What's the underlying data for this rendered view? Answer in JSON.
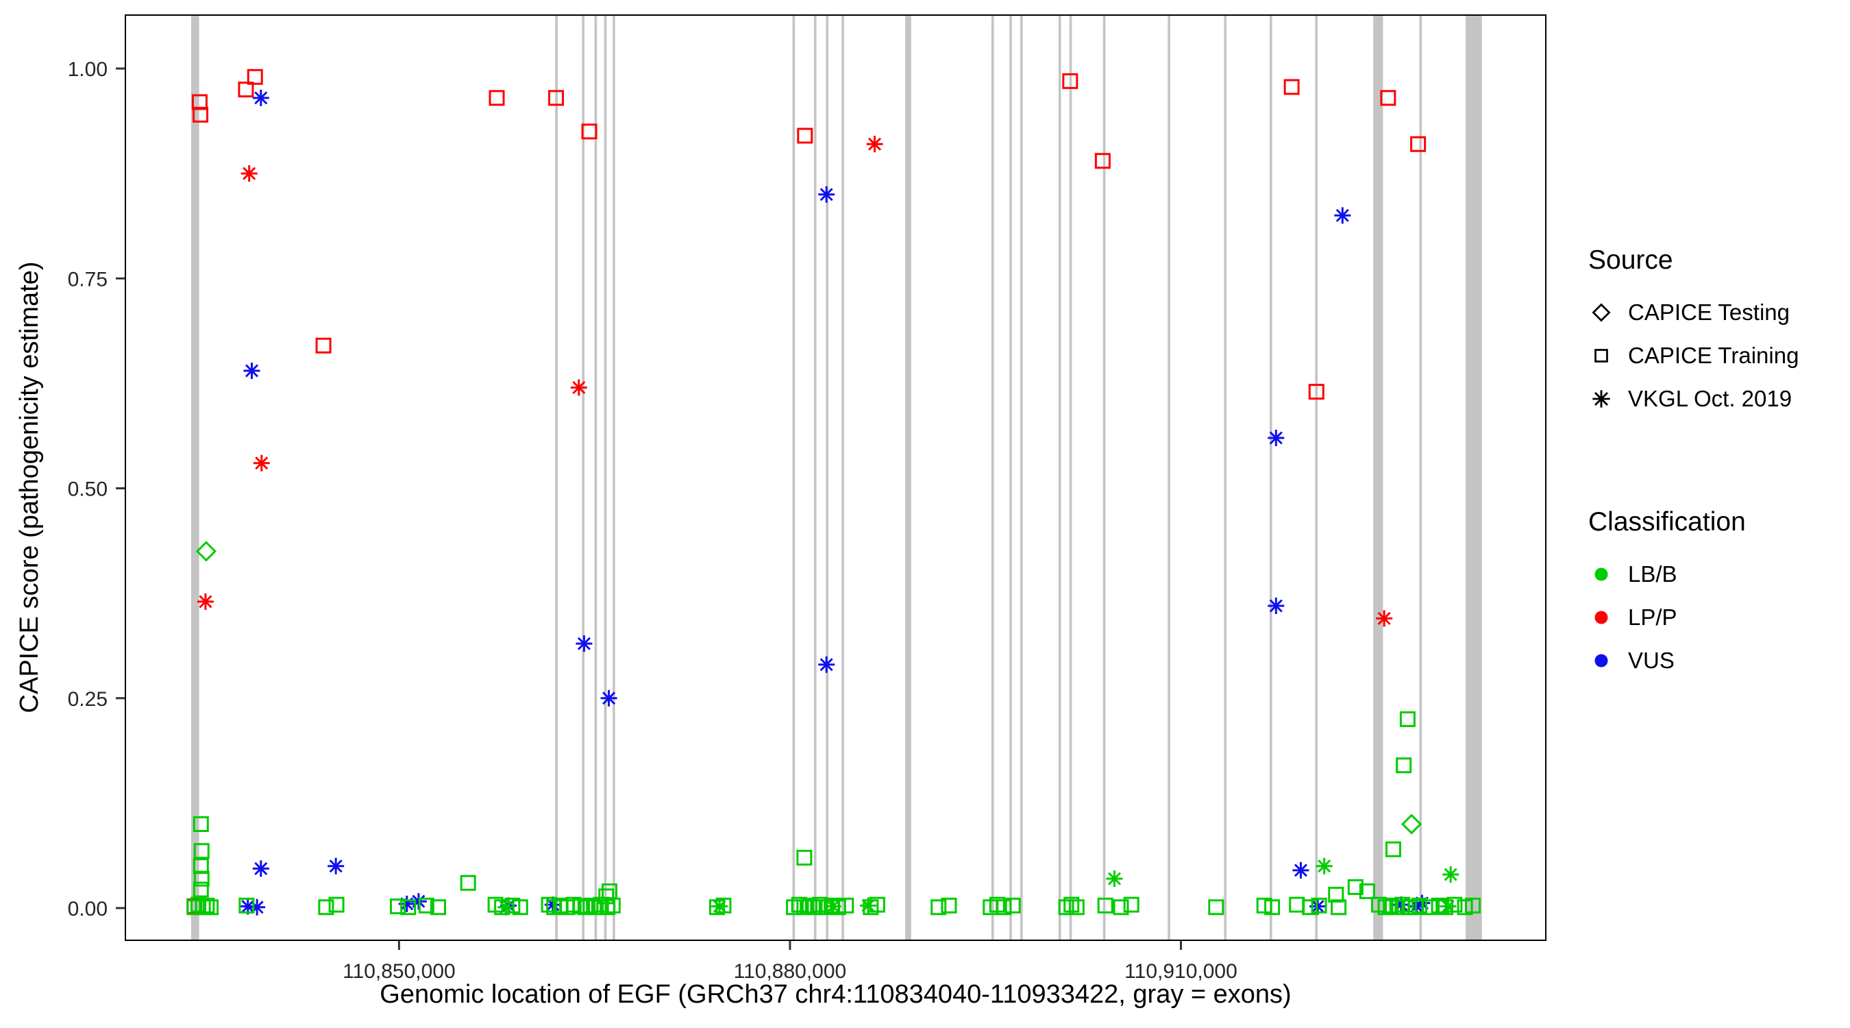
{
  "chart_data": {
    "type": "scatter",
    "title": "",
    "x_axis": {
      "label": "Genomic location of EGF (GRCh37 chr4:110834040-110933422, gray = exons)",
      "domain": [
        110829000,
        110938000
      ],
      "ticks": [
        {
          "value": 110850000,
          "label": "110,850,000"
        },
        {
          "value": 110880000,
          "label": "110,880,000"
        },
        {
          "value": 110910000,
          "label": "110,910,000"
        }
      ]
    },
    "y_axis": {
      "label": "CAPICE score (pathogenicity estimate)",
      "domain": [
        0,
        1
      ],
      "ticks": [
        {
          "value": 0,
          "label": "0.00"
        },
        {
          "value": 0.25,
          "label": "0.25"
        },
        {
          "value": 0.5,
          "label": "0.50"
        },
        {
          "value": 0.75,
          "label": "0.75"
        },
        {
          "value": 1,
          "label": "1.00"
        }
      ]
    },
    "legend_source": {
      "title": "Source",
      "items": [
        {
          "shape": "diamond",
          "label": "CAPICE Testing",
          "source_key": "testing"
        },
        {
          "shape": "square",
          "label": "CAPICE Training",
          "source_key": "training"
        },
        {
          "shape": "asterisk",
          "label": "VKGL Oct. 2019",
          "source_key": "vkgl"
        }
      ]
    },
    "legend_classification": {
      "title": "Classification",
      "items": [
        {
          "label": "LB/B"
        },
        {
          "label": "LP/P"
        },
        {
          "label": "VUS"
        }
      ]
    },
    "colors": {
      "LB/B": "#00CC00",
      "LP/P": "#FF0000",
      "VUS": "#1010EE",
      "exon": "#C4C4C4"
    },
    "exons": [
      [
        110834040,
        110834660
      ],
      [
        110861980,
        110862180
      ],
      [
        110864040,
        110864230
      ],
      [
        110865000,
        110865190
      ],
      [
        110865740,
        110865930
      ],
      [
        110866390,
        110866580
      ],
      [
        110880190,
        110880380
      ],
      [
        110881840,
        110882030
      ],
      [
        110882760,
        110882950
      ],
      [
        110883960,
        110884150
      ],
      [
        110888840,
        110889300
      ],
      [
        110895460,
        110895650
      ],
      [
        110896840,
        110897030
      ],
      [
        110897670,
        110897860
      ],
      [
        110900610,
        110900800
      ],
      [
        110901440,
        110901630
      ],
      [
        110904020,
        110904210
      ],
      [
        110908990,
        110909180
      ],
      [
        110913310,
        110913500
      ],
      [
        110916810,
        110917000
      ],
      [
        110920300,
        110920490
      ],
      [
        110924760,
        110925510
      ],
      [
        110928300,
        110928490
      ],
      [
        110931850,
        110933100
      ]
    ],
    "points_format": [
      "genomic_position",
      "capice_score",
      "classification",
      "source"
    ],
    "points": [
      [
        110834700,
        0.96,
        "LP/P",
        "training"
      ],
      [
        110834760,
        0.945,
        "LP/P",
        "training"
      ],
      [
        110838250,
        0.975,
        "LP/P",
        "training"
      ],
      [
        110838950,
        0.99,
        "LP/P",
        "training"
      ],
      [
        110844200,
        0.67,
        "LP/P",
        "training"
      ],
      [
        110857500,
        0.965,
        "LP/P",
        "training"
      ],
      [
        110862050,
        0.965,
        "LP/P",
        "training"
      ],
      [
        110864600,
        0.925,
        "LP/P",
        "training"
      ],
      [
        110881150,
        0.92,
        "LP/P",
        "training"
      ],
      [
        110901500,
        0.985,
        "LP/P",
        "training"
      ],
      [
        110904000,
        0.89,
        "LP/P",
        "training"
      ],
      [
        110918500,
        0.978,
        "LP/P",
        "training"
      ],
      [
        110920400,
        0.615,
        "LP/P",
        "training"
      ],
      [
        110925900,
        0.965,
        "LP/P",
        "training"
      ],
      [
        110928200,
        0.91,
        "LP/P",
        "training"
      ],
      [
        110834300,
        0.002,
        "LP/P",
        "training"
      ],
      [
        110838500,
        0.875,
        "LP/P",
        "vkgl"
      ],
      [
        110839450,
        0.53,
        "LP/P",
        "vkgl"
      ],
      [
        110835150,
        0.365,
        "LP/P",
        "vkgl"
      ],
      [
        110863800,
        0.62,
        "LP/P",
        "vkgl"
      ],
      [
        110886500,
        0.91,
        "LP/P",
        "vkgl"
      ],
      [
        110925600,
        0.345,
        "LP/P",
        "vkgl"
      ],
      [
        110835200,
        0.425,
        "LB/B",
        "testing"
      ],
      [
        110927700,
        0.1,
        "LB/B",
        "testing"
      ],
      [
        110839400,
        0.965,
        "VUS",
        "vkgl"
      ],
      [
        110838700,
        0.64,
        "VUS",
        "vkgl"
      ],
      [
        110882800,
        0.85,
        "VUS",
        "vkgl"
      ],
      [
        110922400,
        0.825,
        "VUS",
        "vkgl"
      ],
      [
        110864200,
        0.315,
        "VUS",
        "vkgl"
      ],
      [
        110866100,
        0.25,
        "VUS",
        "vkgl"
      ],
      [
        110882800,
        0.29,
        "VUS",
        "vkgl"
      ],
      [
        110917300,
        0.56,
        "VUS",
        "vkgl"
      ],
      [
        110917300,
        0.36,
        "VUS",
        "vkgl"
      ],
      [
        110839400,
        0.047,
        "VUS",
        "vkgl"
      ],
      [
        110845150,
        0.05,
        "VUS",
        "vkgl"
      ],
      [
        110919200,
        0.045,
        "VUS",
        "vkgl"
      ],
      [
        110838400,
        0.002,
        "VUS",
        "vkgl"
      ],
      [
        110839100,
        0.001,
        "VUS",
        "vkgl"
      ],
      [
        110850600,
        0.005,
        "VUS",
        "vkgl"
      ],
      [
        110851500,
        0.008,
        "VUS",
        "vkgl"
      ],
      [
        110858400,
        0.003,
        "VUS",
        "vkgl"
      ],
      [
        110861800,
        0.004,
        "VUS",
        "vkgl"
      ],
      [
        110920500,
        0.002,
        "VUS",
        "vkgl"
      ],
      [
        110926900,
        0.004,
        "VUS",
        "vkgl"
      ],
      [
        110928100,
        0.002,
        "VUS",
        "vkgl"
      ],
      [
        110928500,
        0.006,
        "VUS",
        "vkgl"
      ],
      [
        110904900,
        0.035,
        "LB/B",
        "vkgl"
      ],
      [
        110921000,
        0.05,
        "LB/B",
        "vkgl"
      ],
      [
        110930700,
        0.04,
        "LB/B",
        "vkgl"
      ],
      [
        110874600,
        0.002,
        "LB/B",
        "vkgl"
      ],
      [
        110886000,
        0.003,
        "LB/B",
        "vkgl"
      ],
      [
        110930500,
        0.002,
        "LB/B",
        "vkgl"
      ],
      [
        110858200,
        0.001,
        "LB/B",
        "vkgl"
      ],
      [
        110883300,
        0.002,
        "LB/B",
        "vkgl"
      ],
      [
        110834800,
        0.1,
        "LB/B",
        "training"
      ],
      [
        110834850,
        0.068,
        "LB/B",
        "training"
      ],
      [
        110834800,
        0.05,
        "LB/B",
        "training"
      ],
      [
        110834850,
        0.035,
        "LB/B",
        "training"
      ],
      [
        110834800,
        0.022,
        "LB/B",
        "training"
      ],
      [
        110855300,
        0.03,
        "LB/B",
        "training"
      ],
      [
        110881100,
        0.06,
        "LB/B",
        "training"
      ],
      [
        110866150,
        0.02,
        "LB/B",
        "training"
      ],
      [
        110865900,
        0.014,
        "LB/B",
        "training"
      ],
      [
        110927400,
        0.225,
        "LB/B",
        "training"
      ],
      [
        110927100,
        0.17,
        "LB/B",
        "training"
      ],
      [
        110926300,
        0.07,
        "LB/B",
        "training"
      ],
      [
        110923400,
        0.025,
        "LB/B",
        "training"
      ],
      [
        110924300,
        0.02,
        "LB/B",
        "training"
      ],
      [
        110921900,
        0.016,
        "LB/B",
        "training"
      ],
      [
        110834300,
        0.001,
        "LB/B",
        "training"
      ],
      [
        110834600,
        0.004,
        "LB/B",
        "training"
      ],
      [
        110834950,
        0.001,
        "LB/B",
        "training"
      ],
      [
        110835250,
        0.003,
        "LB/B",
        "training"
      ],
      [
        110835550,
        0.001,
        "LB/B",
        "training"
      ],
      [
        110838300,
        0.003,
        "LB/B",
        "training"
      ],
      [
        110844400,
        0.001,
        "LB/B",
        "training"
      ],
      [
        110845200,
        0.004,
        "LB/B",
        "training"
      ],
      [
        110849900,
        0.002,
        "LB/B",
        "training"
      ],
      [
        110850700,
        0.001,
        "LB/B",
        "training"
      ],
      [
        110852100,
        0.003,
        "LB/B",
        "training"
      ],
      [
        110853000,
        0.001,
        "LB/B",
        "training"
      ],
      [
        110857400,
        0.004,
        "LB/B",
        "training"
      ],
      [
        110857900,
        0.001,
        "LB/B",
        "training"
      ],
      [
        110858700,
        0.003,
        "LB/B",
        "training"
      ],
      [
        110859300,
        0.001,
        "LB/B",
        "training"
      ],
      [
        110861500,
        0.004,
        "LB/B",
        "training"
      ],
      [
        110861900,
        0.001,
        "LB/B",
        "training"
      ],
      [
        110862400,
        0.003,
        "LB/B",
        "training"
      ],
      [
        110862900,
        0.001,
        "LB/B",
        "training"
      ],
      [
        110863400,
        0.004,
        "LB/B",
        "training"
      ],
      [
        110863900,
        0.002,
        "LB/B",
        "training"
      ],
      [
        110864300,
        0.001,
        "LB/B",
        "training"
      ],
      [
        110864700,
        0.003,
        "LB/B",
        "training"
      ],
      [
        110865100,
        0.001,
        "LB/B",
        "training"
      ],
      [
        110865500,
        0.004,
        "LB/B",
        "training"
      ],
      [
        110866000,
        0.001,
        "LB/B",
        "training"
      ],
      [
        110866400,
        0.003,
        "LB/B",
        "training"
      ],
      [
        110874400,
        0.001,
        "LB/B",
        "training"
      ],
      [
        110874900,
        0.003,
        "LB/B",
        "training"
      ],
      [
        110880300,
        0.001,
        "LB/B",
        "training"
      ],
      [
        110880700,
        0.004,
        "LB/B",
        "training"
      ],
      [
        110881100,
        0.001,
        "LB/B",
        "training"
      ],
      [
        110881500,
        0.003,
        "LB/B",
        "training"
      ],
      [
        110881900,
        0.001,
        "LB/B",
        "training"
      ],
      [
        110882300,
        0.004,
        "LB/B",
        "training"
      ],
      [
        110882800,
        0.001,
        "LB/B",
        "training"
      ],
      [
        110883200,
        0.003,
        "LB/B",
        "training"
      ],
      [
        110883700,
        0.001,
        "LB/B",
        "training"
      ],
      [
        110884300,
        0.003,
        "LB/B",
        "training"
      ],
      [
        110886200,
        0.001,
        "LB/B",
        "training"
      ],
      [
        110886700,
        0.004,
        "LB/B",
        "training"
      ],
      [
        110891400,
        0.001,
        "LB/B",
        "training"
      ],
      [
        110892200,
        0.003,
        "LB/B",
        "training"
      ],
      [
        110895400,
        0.001,
        "LB/B",
        "training"
      ],
      [
        110895900,
        0.004,
        "LB/B",
        "training"
      ],
      [
        110896400,
        0.001,
        "LB/B",
        "training"
      ],
      [
        110897100,
        0.003,
        "LB/B",
        "training"
      ],
      [
        110901200,
        0.001,
        "LB/B",
        "training"
      ],
      [
        110901600,
        0.004,
        "LB/B",
        "training"
      ],
      [
        110902000,
        0.001,
        "LB/B",
        "training"
      ],
      [
        110904200,
        0.003,
        "LB/B",
        "training"
      ],
      [
        110905400,
        0.001,
        "LB/B",
        "training"
      ],
      [
        110906200,
        0.004,
        "LB/B",
        "training"
      ],
      [
        110912700,
        0.001,
        "LB/B",
        "training"
      ],
      [
        110916400,
        0.003,
        "LB/B",
        "training"
      ],
      [
        110917000,
        0.001,
        "LB/B",
        "training"
      ],
      [
        110918900,
        0.004,
        "LB/B",
        "training"
      ],
      [
        110919900,
        0.001,
        "LB/B",
        "training"
      ],
      [
        110920600,
        0.003,
        "LB/B",
        "training"
      ],
      [
        110922100,
        0.001,
        "LB/B",
        "training"
      ],
      [
        110925200,
        0.004,
        "LB/B",
        "training"
      ],
      [
        110925700,
        0.001,
        "LB/B",
        "training"
      ],
      [
        110926100,
        0.003,
        "LB/B",
        "training"
      ],
      [
        110926600,
        0.001,
        "LB/B",
        "training"
      ],
      [
        110927000,
        0.004,
        "LB/B",
        "training"
      ],
      [
        110927500,
        0.001,
        "LB/B",
        "training"
      ],
      [
        110928000,
        0.001,
        "LB/B",
        "training"
      ],
      [
        110928300,
        0.003,
        "LB/B",
        "training"
      ],
      [
        110929100,
        0.001,
        "LB/B",
        "training"
      ],
      [
        110929800,
        0.003,
        "LB/B",
        "training"
      ],
      [
        110930300,
        0.001,
        "LB/B",
        "training"
      ],
      [
        110931000,
        0.004,
        "LB/B",
        "training"
      ],
      [
        110931800,
        0.001,
        "LB/B",
        "training"
      ],
      [
        110932400,
        0.003,
        "LB/B",
        "training"
      ]
    ]
  }
}
